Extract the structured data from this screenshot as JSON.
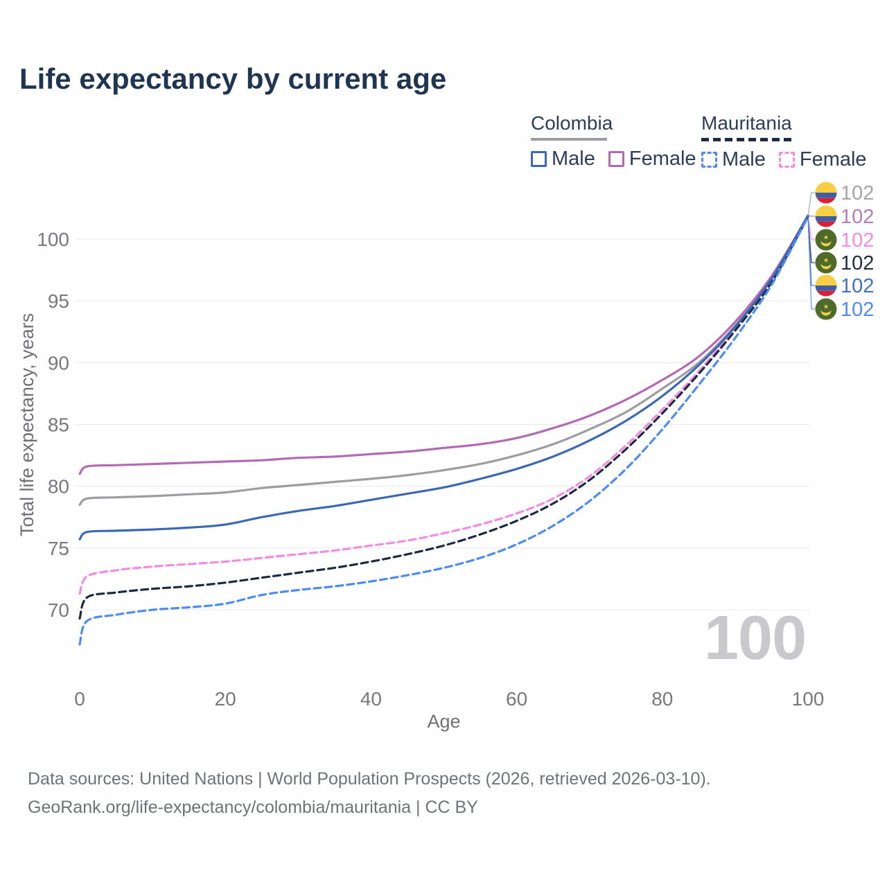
{
  "title": "Life expectancy by current age",
  "legend": {
    "groups": [
      {
        "id": "colombia",
        "label": "Colombia",
        "underline_style": "solid",
        "underline_color": "#9d9da1",
        "items": [
          {
            "label": "Male",
            "color": "#3b68b2",
            "style": "solid"
          },
          {
            "label": "Female",
            "color": "#b36ab5",
            "style": "solid"
          }
        ]
      },
      {
        "id": "mauritania",
        "label": "Mauritania",
        "underline_style": "dashed",
        "underline_color": "#1c2b42",
        "items": [
          {
            "label": "Male",
            "color": "#4d8bf0",
            "style": "dashed"
          },
          {
            "label": "Female",
            "color": "#f48ae2",
            "style": "dashed"
          }
        ]
      }
    ]
  },
  "watermark": "100",
  "footer": {
    "line1": "Data sources: United Nations | World Population Prospects (2026, retrieved 2026-03-10).",
    "line2": "GeoRank.org/life-expectancy/colombia/mauritania | CC BY"
  },
  "flags": {
    "colombia": {
      "yellow": "#f6cf45",
      "blue": "#3d5da7",
      "red": "#dd1f32"
    },
    "mauritania": {
      "green": "#4f6b2a",
      "yellow": "#f2cf4f"
    }
  },
  "chart_data": {
    "type": "line",
    "title": "Life expectancy by current age",
    "xlabel": "Age",
    "ylabel": "Total life expectancy, years",
    "xlim": [
      0,
      100
    ],
    "ylim": [
      66.5,
      103
    ],
    "x_ticks": [
      0,
      20,
      40,
      60,
      80,
      100
    ],
    "y_ticks": [
      70,
      75,
      80,
      85,
      90,
      95,
      100
    ],
    "grid": "horizontal",
    "tick_color": "#77787d",
    "grid_color": "#e8e8ec",
    "x": [
      0,
      1,
      5,
      10,
      15,
      20,
      25,
      30,
      35,
      40,
      45,
      50,
      55,
      60,
      65,
      70,
      75,
      80,
      85,
      90,
      95,
      100
    ],
    "series": [
      {
        "id": "colombia-both",
        "country": "Colombia",
        "group": "Both sexes",
        "color": "#9d9da1",
        "dash": "solid",
        "flag": "colombia",
        "slot": 0,
        "end_label": "102",
        "end_label_color": "#a3a5a9",
        "values": [
          78.5,
          79.0,
          79.1,
          79.2,
          79.35,
          79.5,
          79.85,
          80.1,
          80.35,
          80.6,
          80.9,
          81.3,
          81.8,
          82.5,
          83.4,
          84.6,
          86.0,
          87.9,
          90.0,
          93.0,
          96.8,
          101.9
        ]
      },
      {
        "id": "colombia-female",
        "country": "Colombia",
        "group": "Female",
        "color": "#b36ab5",
        "dash": "solid",
        "flag": "colombia",
        "slot": 1,
        "end_label": "102",
        "end_label_color": "#b37cb8",
        "values": [
          81.0,
          81.6,
          81.7,
          81.8,
          81.9,
          82.0,
          82.1,
          82.3,
          82.4,
          82.6,
          82.8,
          83.1,
          83.4,
          83.9,
          84.7,
          85.7,
          87.0,
          88.6,
          90.5,
          93.3,
          97.0,
          101.9
        ]
      },
      {
        "id": "mauritania-female",
        "country": "Mauritania",
        "group": "Female",
        "color": "#f48ae2",
        "dash": "dashed",
        "flag": "mauritania",
        "slot": 2,
        "end_label": "102",
        "end_label_color": "#f48ae2",
        "values": [
          71.3,
          72.7,
          73.2,
          73.5,
          73.7,
          73.9,
          74.2,
          74.5,
          74.8,
          75.2,
          75.6,
          76.2,
          76.9,
          77.8,
          79.0,
          80.8,
          83.3,
          86.2,
          89.3,
          92.8,
          96.6,
          101.8
        ]
      },
      {
        "id": "mauritania-both",
        "country": "Mauritania",
        "group": "Both sexes",
        "color": "#1c2b42",
        "dash": "dashed",
        "flag": "mauritania",
        "slot": 3,
        "end_label": "102",
        "end_label_color": "#222d3d",
        "values": [
          69.3,
          71.0,
          71.4,
          71.7,
          71.9,
          72.2,
          72.6,
          73.0,
          73.4,
          73.9,
          74.5,
          75.2,
          76.1,
          77.2,
          78.6,
          80.5,
          83.0,
          85.9,
          89.1,
          92.6,
          96.5,
          101.8
        ]
      },
      {
        "id": "colombia-male",
        "country": "Colombia",
        "group": "Male",
        "color": "#3b68b2",
        "dash": "solid",
        "flag": "colombia",
        "slot": 4,
        "end_label": "102",
        "end_label_color": "#4272bb",
        "values": [
          75.7,
          76.3,
          76.4,
          76.5,
          76.65,
          76.9,
          77.5,
          78.0,
          78.4,
          78.9,
          79.4,
          79.9,
          80.6,
          81.4,
          82.4,
          83.7,
          85.3,
          87.3,
          89.8,
          92.9,
          96.8,
          101.9
        ]
      },
      {
        "id": "mauritania-male",
        "country": "Mauritania",
        "group": "Male",
        "color": "#4d8bf0",
        "dash": "dashed",
        "flag": "mauritania",
        "slot": 5,
        "end_label": "102",
        "end_label_color": "#4d8bf0",
        "values": [
          67.2,
          69.1,
          69.6,
          70.0,
          70.2,
          70.5,
          71.2,
          71.6,
          71.9,
          72.3,
          72.8,
          73.4,
          74.2,
          75.3,
          76.8,
          78.8,
          81.4,
          84.6,
          88.2,
          92.0,
          96.3,
          101.8
        ]
      }
    ]
  }
}
